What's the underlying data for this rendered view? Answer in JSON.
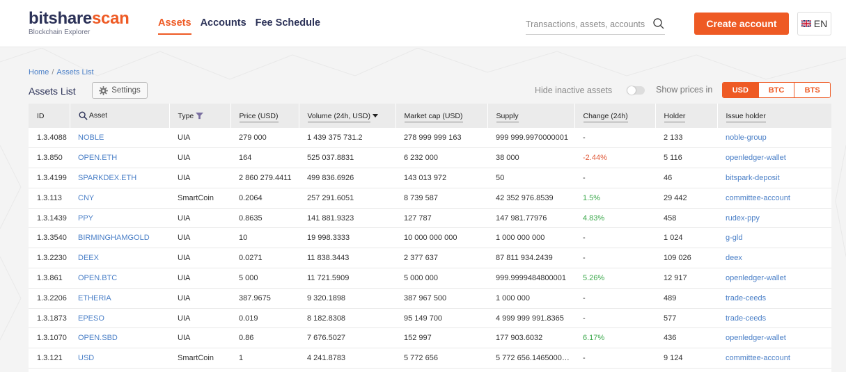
{
  "header": {
    "logo_part1": "bitshare",
    "logo_part2": "scan",
    "logo_sub": "Blockchain Explorer",
    "nav": [
      {
        "label": "Assets"
      },
      {
        "label": "Accounts"
      },
      {
        "label": "Fee Schedule"
      }
    ],
    "search_placeholder": "Transactions, assets, accounts",
    "create_account": "Create account",
    "lang": "EN"
  },
  "breadcrumb": {
    "home": "Home",
    "sep": "/",
    "current": "Assets List"
  },
  "page_title": "Assets List",
  "settings_label": "Settings",
  "hide_inactive_label": "Hide inactive assets",
  "show_prices_label": "Show prices in",
  "currencies": [
    "USD",
    "BTC",
    "BTS"
  ],
  "table": {
    "columns": [
      "ID",
      "Asset",
      "Type",
      "Price (USD)",
      "Volume (24h, USD)",
      "Market cap (USD)",
      "Supply",
      "Change (24h)",
      "Holder",
      "Issue holder"
    ],
    "rows": [
      [
        "1.3.4088",
        "NOBLE",
        "UIA",
        "279 000",
        "1 439 375 731.2",
        "278 999 999 163",
        "999 999.9970000001",
        "-",
        "2 133",
        "noble-group"
      ],
      [
        "1.3.850",
        "OPEN.ETH",
        "UIA",
        "164",
        "525 037.8831",
        "6 232 000",
        "38 000",
        "-2.44%",
        "5 116",
        "openledger-wallet"
      ],
      [
        "1.3.4199",
        "SPARKDEX.ETH",
        "UIA",
        "2 860 279.4411",
        "499 836.6926",
        "143 013 972",
        "50",
        "-",
        "46",
        "bitspark-deposit"
      ],
      [
        "1.3.113",
        "CNY",
        "SmartCoin",
        "0.2064",
        "257 291.6051",
        "8 739 587",
        "42 352 976.8539",
        "1.5%",
        "29 442",
        "committee-account"
      ],
      [
        "1.3.1439",
        "PPY",
        "UIA",
        "0.8635",
        "141 881.9323",
        "127 787",
        "147 981.77976",
        "4.83%",
        "458",
        "rudex-ppy"
      ],
      [
        "1.3.3540",
        "BIRMINGHAMGOLD",
        "UIA",
        "10",
        "19 998.3333",
        "10 000 000 000",
        "1 000 000 000",
        "-",
        "1 024",
        "g-gld"
      ],
      [
        "1.3.2230",
        "DEEX",
        "UIA",
        "0.0271",
        "11 838.3443",
        "2 377 637",
        "87 811 934.2439",
        "-",
        "109 026",
        "deex"
      ],
      [
        "1.3.861",
        "OPEN.BTC",
        "UIA",
        "5 000",
        "11 721.5909",
        "5 000 000",
        "999.9999484800001",
        "5.26%",
        "12 917",
        "openledger-wallet"
      ],
      [
        "1.3.2206",
        "ETHERIA",
        "UIA",
        "387.9675",
        "9 320.1898",
        "387 967 500",
        "1 000 000",
        "-",
        "489",
        "trade-ceeds"
      ],
      [
        "1.3.1873",
        "EPESO",
        "UIA",
        "0.019",
        "8 182.8308",
        "95 149 700",
        "4 999 999 991.8365",
        "-",
        "577",
        "trade-ceeds"
      ],
      [
        "1.3.1070",
        "OPEN.SBD",
        "UIA",
        "0.86",
        "7 676.5027",
        "152 997",
        "177 903.6032",
        "6.17%",
        "436",
        "openledger-wallet"
      ],
      [
        "1.3.121",
        "USD",
        "SmartCoin",
        "1",
        "4 241.8783",
        "5 772 656",
        "5 772 656.1465000…",
        "-",
        "9 124",
        "committee-account"
      ]
    ]
  },
  "colors": {
    "accent": "#ee5a24",
    "brand": "#2b3157",
    "link": "#4a7fc7",
    "negative": "#e05a3a",
    "positive": "#3aa84a"
  }
}
